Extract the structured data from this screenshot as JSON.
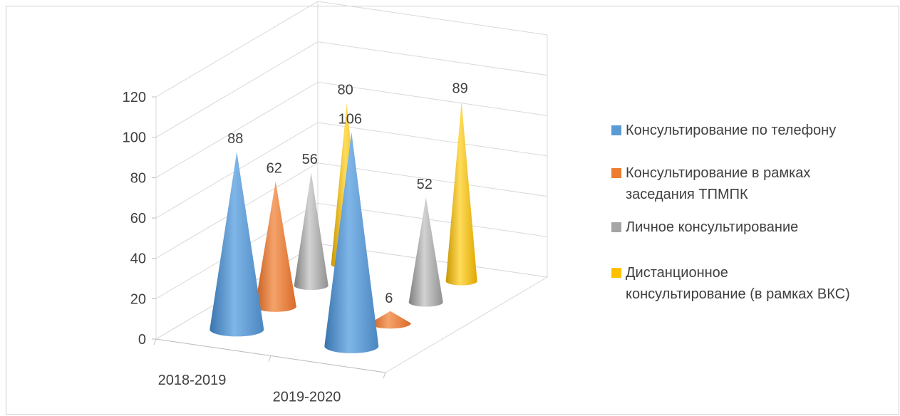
{
  "chart_data": {
    "type": "bar",
    "subtype": "3d-cone-column",
    "categories": [
      "2018-2019",
      "2019-2020"
    ],
    "series": [
      {
        "name": "Консультирование по телефону",
        "values": [
          88,
          106
        ],
        "color": "#5b9bd5"
      },
      {
        "name": "Консультирование в рамках заседания ТПМПК",
        "values": [
          62,
          6
        ],
        "color": "#ed7d31"
      },
      {
        "name": "Личное консультирование",
        "values": [
          56,
          52
        ],
        "color": "#a5a5a5"
      },
      {
        "name": "Дистанционное консультирование (в рамках ВКС)",
        "values": [
          80,
          89
        ],
        "color": "#ffc000"
      }
    ],
    "yticks": [
      "0",
      "20",
      "40",
      "60",
      "80",
      "100",
      "120"
    ],
    "ylim": [
      0,
      120
    ],
    "grid": true,
    "legend_position": "right"
  },
  "legend": {
    "items": [
      {
        "line1": "Консультирование по телефону",
        "line2": ""
      },
      {
        "line1": "Консультирование в рамках",
        "line2": "заседания ТПМПК"
      },
      {
        "line1": "Личное консультирование",
        "line2": ""
      },
      {
        "line1": "Дистанционное",
        "line2": "консультирование (в рамках ВКС)"
      }
    ]
  }
}
